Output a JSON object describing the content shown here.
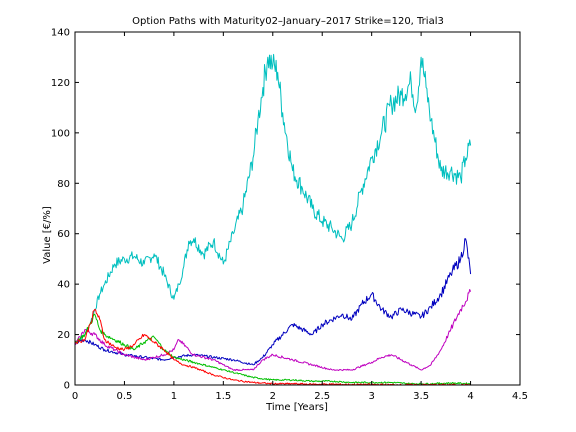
{
  "chart_data": {
    "type": "line",
    "title": "Option Paths with Maturity02–January–2017 Strike=120, Trial3",
    "xlabel": "Time [Years]",
    "ylabel": "Value [€/%]",
    "xlim": [
      0,
      4.5
    ],
    "ylim": [
      0,
      140
    ],
    "xticks": [
      0,
      0.5,
      1,
      1.5,
      2,
      2.5,
      3,
      3.5,
      4,
      4.5
    ],
    "xtick_labels": [
      "0",
      "0.5",
      "1",
      "1.5",
      "2",
      "2.5",
      "3",
      "3.5",
      "4",
      "4.5"
    ],
    "yticks": [
      0,
      20,
      40,
      60,
      80,
      100,
      120,
      140
    ],
    "ytick_labels": [
      "0",
      "20",
      "40",
      "60",
      "80",
      "100",
      "120",
      "140"
    ],
    "grid": false,
    "legend": "none",
    "series": [
      {
        "color": "#00BFBF",
        "x": [
          0,
          0.05,
          0.1,
          0.15,
          0.2,
          0.25,
          0.3,
          0.4,
          0.5,
          0.6,
          0.7,
          0.8,
          0.9,
          1.0,
          1.05,
          1.1,
          1.15,
          1.2,
          1.3,
          1.4,
          1.5,
          1.6,
          1.7,
          1.8,
          1.85,
          1.9,
          1.95,
          2.0,
          2.05,
          2.1,
          2.2,
          2.3,
          2.4,
          2.5,
          2.6,
          2.7,
          2.8,
          2.9,
          3.0,
          3.1,
          3.2,
          3.3,
          3.4,
          3.45,
          3.5,
          3.55,
          3.6,
          3.7,
          3.8,
          3.9,
          3.95,
          4.0
        ],
        "y": [
          16,
          18,
          20,
          24,
          30,
          36,
          40,
          48,
          50,
          51,
          48,
          52,
          44,
          34,
          40,
          47,
          57,
          58,
          52,
          57,
          48,
          60,
          71,
          90,
          105,
          118,
          130,
          127,
          124,
          108,
          85,
          78,
          70,
          65,
          62,
          58,
          64,
          78,
          90,
          100,
          112,
          115,
          120,
          110,
          130,
          118,
          105,
          85,
          85,
          82,
          90,
          95
        ]
      },
      {
        "color": "#0000BF",
        "x": [
          0,
          0.1,
          0.2,
          0.3,
          0.5,
          0.7,
          0.9,
          1.0,
          1.2,
          1.4,
          1.6,
          1.8,
          1.9,
          2.0,
          2.2,
          2.4,
          2.5,
          2.7,
          2.8,
          2.9,
          3.0,
          3.1,
          3.2,
          3.3,
          3.5,
          3.6,
          3.7,
          3.8,
          3.9,
          3.95,
          4.0
        ],
        "y": [
          17,
          18,
          16,
          14,
          12,
          11,
          10,
          11,
          12,
          11,
          10,
          8,
          11,
          16,
          24,
          20,
          24,
          28,
          26,
          32,
          36,
          30,
          27,
          30,
          27,
          31,
          36,
          44,
          50,
          58,
          44
        ]
      },
      {
        "color": "#BF00BF",
        "x": [
          0,
          0.05,
          0.1,
          0.2,
          0.3,
          0.4,
          0.5,
          0.7,
          0.9,
          1.0,
          1.05,
          1.2,
          1.4,
          1.5,
          1.6,
          1.8,
          1.9,
          2.0,
          2.2,
          2.4,
          2.6,
          2.8,
          3.0,
          3.1,
          3.2,
          3.4,
          3.5,
          3.6,
          3.7,
          3.8,
          3.9,
          4.0
        ],
        "y": [
          16,
          19,
          22,
          20,
          16,
          14,
          12,
          10,
          12,
          14,
          18,
          12,
          10,
          8,
          6,
          6,
          10,
          12,
          10,
          8,
          6,
          6,
          9,
          11,
          12,
          8,
          6,
          8,
          14,
          22,
          30,
          37
        ]
      },
      {
        "color": "#00BF00",
        "x": [
          0,
          0.1,
          0.15,
          0.2,
          0.25,
          0.3,
          0.4,
          0.5,
          0.6,
          0.7,
          0.8,
          0.9,
          1.0,
          1.2,
          1.4,
          1.6,
          1.8,
          2.0,
          2.2,
          2.4,
          2.6,
          2.8,
          3.0,
          3.2,
          3.4,
          3.6,
          3.8,
          4.0
        ],
        "y": [
          17,
          20,
          24,
          28,
          22,
          20,
          18,
          16,
          14,
          17,
          19,
          14,
          11,
          9,
          7,
          5,
          3,
          2,
          2,
          1.5,
          1.5,
          1,
          1,
          1,
          0.5,
          0.5,
          0.8,
          0.5
        ]
      },
      {
        "color": "#FF0000",
        "x": [
          0,
          0.1,
          0.15,
          0.2,
          0.25,
          0.3,
          0.4,
          0.5,
          0.6,
          0.7,
          0.8,
          0.9,
          1.0,
          1.1,
          1.2,
          1.4,
          1.6,
          1.8,
          2.0,
          2.2,
          2.4,
          2.6,
          2.8,
          3.0,
          3.2,
          3.4,
          3.6,
          3.8,
          4.0
        ],
        "y": [
          17,
          18,
          24,
          30,
          26,
          18,
          15,
          14,
          16,
          20,
          17,
          14,
          10,
          8,
          7,
          4,
          2,
          1,
          0.5,
          0.5,
          0.3,
          0.3,
          0.2,
          0.2,
          0.1,
          0.1,
          0.1,
          0.1,
          0.1
        ]
      }
    ]
  }
}
